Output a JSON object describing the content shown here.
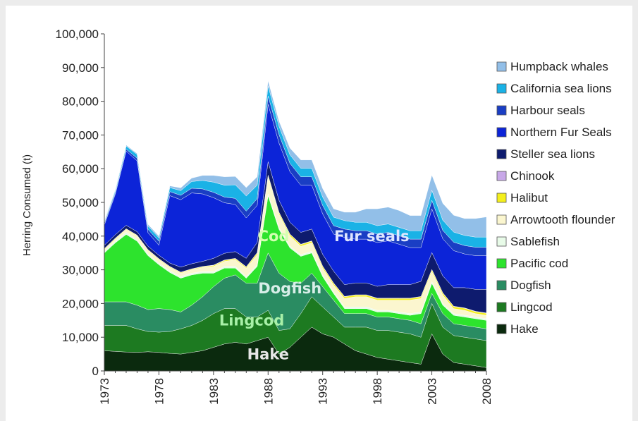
{
  "chart_data": {
    "type": "area",
    "stacked": true,
    "title": "",
    "xlabel": "",
    "ylabel": "Herring Consumed (t)",
    "ylim": [
      0,
      100000
    ],
    "xlim": [
      1973,
      2008
    ],
    "y_ticks": [
      "0",
      "10,000",
      "20,000",
      "30,000",
      "40,000",
      "50,000",
      "60,000",
      "70,000",
      "80,000",
      "90,000",
      "100,000"
    ],
    "x_ticks": [
      "1973",
      "1978",
      "1983",
      "1988",
      "1993",
      "1998",
      "2003",
      "2008"
    ],
    "grid": false,
    "legend_position": "right",
    "x": [
      1973,
      1974,
      1975,
      1976,
      1977,
      1978,
      1979,
      1980,
      1981,
      1982,
      1983,
      1984,
      1985,
      1986,
      1987,
      1988,
      1989,
      1990,
      1991,
      1992,
      1993,
      1994,
      1995,
      1996,
      1997,
      1998,
      1999,
      2000,
      2001,
      2002,
      2003,
      2004,
      2005,
      2006,
      2007,
      2008
    ],
    "series": [
      {
        "name": "Hake",
        "color": "#0b2a0e",
        "values": [
          6000,
          5800,
          5600,
          5500,
          5700,
          5500,
          5200,
          5000,
          5500,
          6000,
          7000,
          8000,
          8500,
          8000,
          9000,
          10000,
          5000,
          7000,
          10000,
          13000,
          11000,
          10000,
          8000,
          6000,
          5000,
          4000,
          3500,
          3000,
          2500,
          2000,
          11000,
          5000,
          2500,
          2000,
          1500,
          1000
        ]
      },
      {
        "name": "Lingcod",
        "color": "#1d7a21",
        "values": [
          7500,
          7700,
          7900,
          7000,
          6000,
          6000,
          6500,
          7500,
          8000,
          9000,
          10000,
          10500,
          10000,
          8000,
          7000,
          8000,
          7000,
          5500,
          7000,
          9000,
          8000,
          6000,
          5000,
          7000,
          8000,
          8000,
          8500,
          8500,
          8500,
          8000,
          9000,
          8000,
          8000,
          8000,
          8000,
          8000
        ]
      },
      {
        "name": "Dogfish",
        "color": "#2a8c62",
        "values": [
          7000,
          7000,
          7000,
          7000,
          6500,
          7000,
          6500,
          5000,
          6000,
          7000,
          8000,
          9000,
          10000,
          10000,
          10000,
          17000,
          17000,
          14000,
          9000,
          7000,
          6000,
          5000,
          4000,
          4000,
          4000,
          4000,
          4000,
          4000,
          4000,
          4000,
          3000,
          4000,
          3500,
          3500,
          3500,
          3500
        ]
      },
      {
        "name": "Pacific cod",
        "color": "#2de32d",
        "values": [
          14500,
          17500,
          20000,
          19000,
          16000,
          13000,
          11000,
          10000,
          9000,
          7000,
          4000,
          3000,
          2000,
          1500,
          5000,
          17000,
          13000,
          10000,
          8000,
          6000,
          3000,
          2000,
          1500,
          1500,
          1500,
          1500,
          1500,
          1500,
          1500,
          3000,
          3000,
          2500,
          2500,
          2500,
          2500,
          2500
        ]
      },
      {
        "name": "Sablefish",
        "color": "#e8fbe8",
        "values": [
          500,
          500,
          600,
          500,
          500,
          500,
          500,
          500,
          500,
          500,
          500,
          500,
          500,
          500,
          500,
          500,
          500,
          500,
          500,
          500,
          500,
          500,
          500,
          500,
          500,
          500,
          500,
          500,
          500,
          500,
          500,
          500,
          500,
          500,
          500,
          500
        ]
      },
      {
        "name": "Arrowtooth flounder",
        "color": "#fbf6cf",
        "values": [
          500,
          600,
          800,
          1000,
          1000,
          1000,
          1000,
          1000,
          1000,
          1200,
          1500,
          1500,
          2000,
          2500,
          3000,
          5000,
          4000,
          3000,
          2500,
          2500,
          2000,
          2000,
          2500,
          3000,
          3000,
          3000,
          3000,
          3500,
          4000,
          4000,
          3000,
          2500,
          1500,
          1500,
          1000,
          1000
        ]
      },
      {
        "name": "Halibut",
        "color": "#f4ef1c",
        "values": [
          200,
          200,
          200,
          200,
          200,
          200,
          200,
          200,
          200,
          200,
          300,
          300,
          300,
          300,
          500,
          500,
          500,
          500,
          500,
          500,
          500,
          500,
          500,
          500,
          500,
          500,
          500,
          500,
          500,
          500,
          500,
          600,
          600,
          600,
          600,
          600
        ]
      },
      {
        "name": "Chinook",
        "color": "#c8a8e8",
        "values": [
          100,
          100,
          100,
          100,
          100,
          100,
          100,
          100,
          100,
          100,
          100,
          100,
          100,
          100,
          100,
          100,
          100,
          100,
          100,
          100,
          100,
          100,
          100,
          100,
          100,
          100,
          100,
          100,
          100,
          100,
          100,
          100,
          100,
          100,
          100,
          100
        ]
      },
      {
        "name": "Steller sea lions",
        "color": "#0e1b6e",
        "values": [
          1000,
          1000,
          1000,
          1000,
          1000,
          1000,
          1000,
          1500,
          1500,
          1500,
          2000,
          2000,
          2000,
          2500,
          3000,
          4000,
          3500,
          3500,
          3500,
          3500,
          3500,
          3500,
          3500,
          3500,
          3500,
          3500,
          4000,
          4000,
          4000,
          4500,
          5000,
          5000,
          5500,
          6000,
          6500,
          7000
        ]
      },
      {
        "name": "Northern Fur Seals",
        "color": "#0c24d8",
        "values": [
          6000,
          12000,
          22000,
          21000,
          4000,
          3000,
          20000,
          20000,
          21000,
          20000,
          18000,
          15000,
          14000,
          12000,
          11000,
          17000,
          17000,
          15000,
          14000,
          13000,
          12000,
          11000,
          14000,
          13000,
          13000,
          13000,
          13000,
          12000,
          11000,
          10000,
          13000,
          11000,
          11000,
          10000,
          10000,
          10000
        ]
      },
      {
        "name": "Harbour seals",
        "color": "#1a3ec4",
        "values": [
          500,
          500,
          600,
          800,
          1000,
          1200,
          1200,
          1300,
          1400,
          1500,
          1600,
          1700,
          1800,
          2000,
          2000,
          2500,
          2500,
          2500,
          2500,
          2500,
          2500,
          2500,
          2500,
          2500,
          2500,
          2500,
          2500,
          2500,
          2500,
          2500,
          2500,
          2500,
          2500,
          2500,
          2500,
          2500
        ]
      },
      {
        "name": "California sea lions",
        "color": "#1ab2e6",
        "values": [
          400,
          600,
          900,
          1100,
          1000,
          1000,
          1200,
          1400,
          2000,
          2500,
          3000,
          3500,
          4000,
          4500,
          4000,
          3000,
          2500,
          2500,
          2500,
          2500,
          2500,
          2500,
          2500,
          2500,
          2500,
          2500,
          2500,
          2500,
          2500,
          2500,
          3000,
          3000,
          3000,
          3000,
          3000,
          3000
        ]
      },
      {
        "name": "Humpback whales",
        "color": "#92bfe8",
        "values": [
          300,
          300,
          300,
          300,
          500,
          500,
          500,
          800,
          1000,
          1500,
          2000,
          2500,
          2500,
          2500,
          2500,
          1500,
          1500,
          2000,
          2500,
          2500,
          2500,
          2500,
          2500,
          3000,
          4000,
          5000,
          5000,
          5000,
          4500,
          4500,
          4500,
          5000,
          5000,
          5000,
          5500,
          6000
        ]
      }
    ],
    "annotations": [
      {
        "text": "Hake",
        "x": 1988,
        "y": 3500,
        "color": "#e6e6e6"
      },
      {
        "text": "Lingcod",
        "x": 1986.5,
        "y": 13500,
        "color": "#a8f0a8"
      },
      {
        "text": "Dogfish",
        "x": 1990,
        "y": 23000,
        "color": "#d8eee8"
      },
      {
        "text": "Cod",
        "x": 1988.5,
        "y": 38500,
        "color": "#d4ffb2"
      },
      {
        "text": "Fur seals",
        "x": 1997.5,
        "y": 38500,
        "color": "#dfe6ff"
      }
    ]
  }
}
